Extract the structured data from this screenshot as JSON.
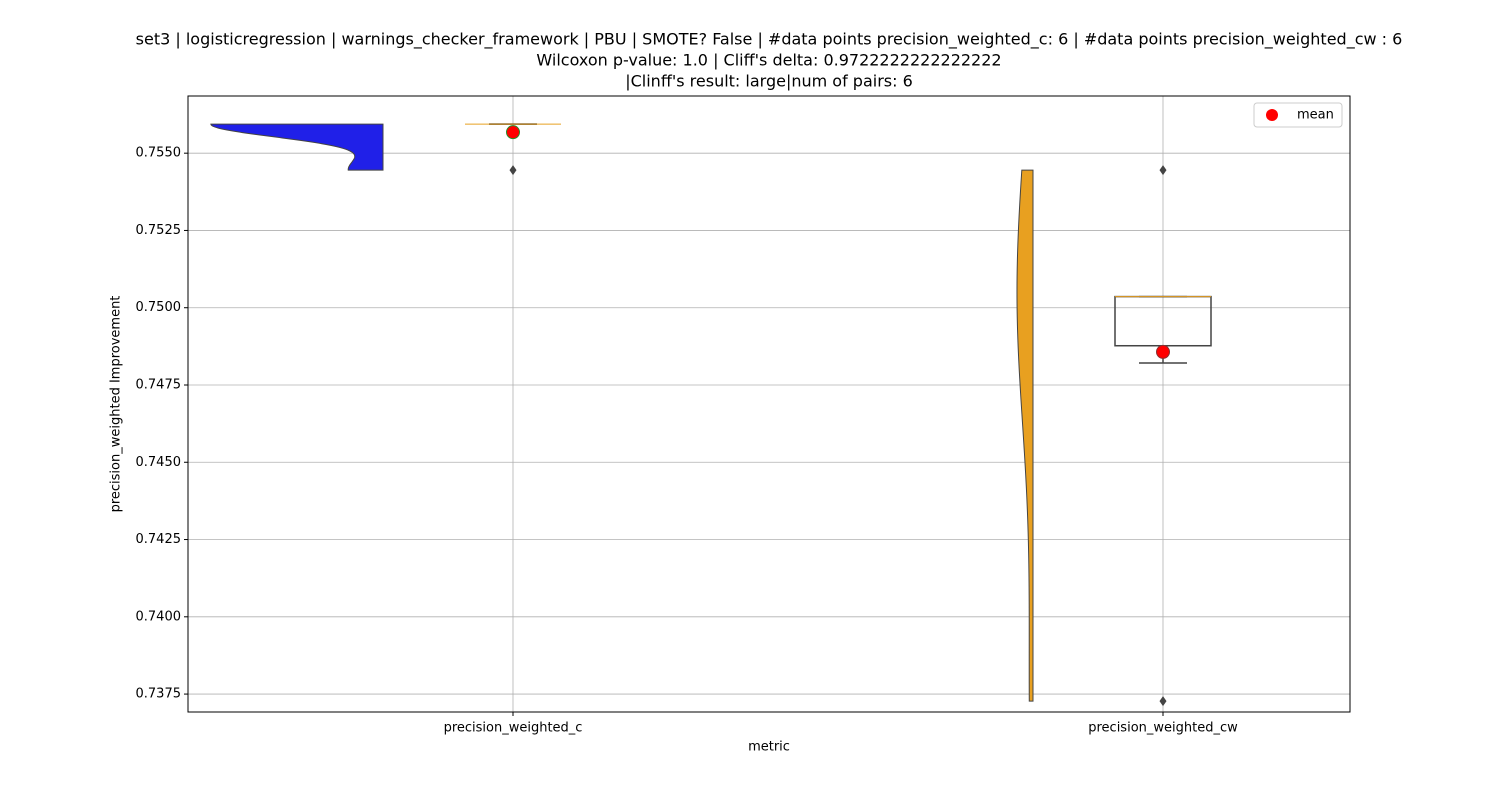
{
  "chart_data": {
    "type": "violin_box",
    "title": [
      "set3 | logisticregression | warnings_checker_framework | PBU | SMOTE? False | #data points precision_weighted_c: 6 | #data points precision_weighted_cw : 6",
      "Wilcoxon p-value: 1.0 | Cliff's delta: 0.9722222222222222",
      "|Clinff's result: large|num of pairs: 6"
    ],
    "xlabel": "metric",
    "ylabel": "precision_weighted Improvement",
    "categories": [
      "precision_weighted_c",
      "precision_weighted_cw"
    ],
    "ylim": [
      0.73692,
      0.75685
    ],
    "yticks": [
      {
        "value": 0.7375,
        "label": "0.7375"
      },
      {
        "value": 0.74,
        "label": "0.7400"
      },
      {
        "value": 0.7425,
        "label": "0.7425"
      },
      {
        "value": 0.745,
        "label": "0.7450"
      },
      {
        "value": 0.7475,
        "label": "0.7475"
      },
      {
        "value": 0.75,
        "label": "0.7500"
      },
      {
        "value": 0.7525,
        "label": "0.7525"
      },
      {
        "value": 0.755,
        "label": "0.7550"
      }
    ],
    "grid": true,
    "groups": [
      {
        "color": "#2020e8",
        "points": [
          0.75594,
          0.75594,
          0.75594,
          0.75594,
          0.75594,
          0.75445
        ],
        "box": {
          "whislo": 0.75594,
          "q1": 0.75594,
          "median": 0.75594,
          "q3": 0.75594,
          "whishi": 0.75594
        },
        "outliers": [
          0.75445
        ],
        "mean": 0.75568,
        "mean_edge_color": "#2a8a2a"
      },
      {
        "color": "#e8a020",
        "points": [
          0.73727,
          0.74821,
          0.75036,
          0.75036,
          0.75036,
          0.75445
        ],
        "box": {
          "whislo": 0.74821,
          "q1": 0.74877,
          "median": 0.75036,
          "q3": 0.75036,
          "whishi": 0.75036
        },
        "outliers": [
          0.75445,
          0.73727
        ],
        "mean": 0.74857,
        "mean_edge_color": "#8a3030"
      }
    ],
    "legend": {
      "label": "mean",
      "color": "#ff0000",
      "position": "upper right"
    }
  }
}
